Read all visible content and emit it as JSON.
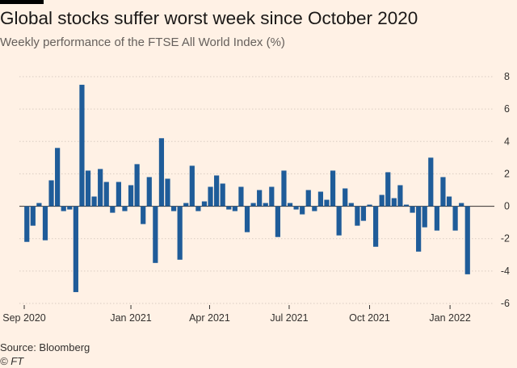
{
  "title": "Global stocks suffer worst week since October 2020",
  "subtitle": "Weekly performance of the FTSE All World Index (%)",
  "source": "Source: Bloomberg",
  "credit": "© FT",
  "chart_data": {
    "type": "bar",
    "title": "Global stocks suffer worst week since October 2020",
    "subtitle": "Weekly performance of the FTSE All World Index (%)",
    "ylabel": "",
    "xlabel": "",
    "ylim": [
      -6,
      8
    ],
    "yticks": [
      -6,
      -4,
      -2,
      0,
      2,
      4,
      6,
      8
    ],
    "y_axis_position": "right",
    "grid": "horizontal",
    "bar_color": "#1f5c99",
    "xtick_labels": [
      "Sep 2020",
      "Jan 2021",
      "Apr 2021",
      "Jul 2021",
      "Oct 2021",
      "Jan 2022"
    ],
    "xtick_dates": [
      "2020-09-01",
      "2021-01-01",
      "2021-04-01",
      "2021-07-01",
      "2021-10-01",
      "2022-01-01"
    ],
    "week_dates": [
      "2020-09-04",
      "2020-09-11",
      "2020-09-18",
      "2020-09-25",
      "2020-10-02",
      "2020-10-09",
      "2020-10-16",
      "2020-10-23",
      "2020-10-30",
      "2020-11-06",
      "2020-11-13",
      "2020-11-20",
      "2020-11-27",
      "2020-12-04",
      "2020-12-11",
      "2020-12-18",
      "2020-12-25",
      "2021-01-01",
      "2021-01-08",
      "2021-01-15",
      "2021-01-22",
      "2021-01-29",
      "2021-02-05",
      "2021-02-12",
      "2021-02-19",
      "2021-02-26",
      "2021-03-05",
      "2021-03-12",
      "2021-03-19",
      "2021-03-26",
      "2021-04-02",
      "2021-04-09",
      "2021-04-16",
      "2021-04-23",
      "2021-04-30",
      "2021-05-07",
      "2021-05-14",
      "2021-05-21",
      "2021-05-28",
      "2021-06-04",
      "2021-06-11",
      "2021-06-18",
      "2021-06-25",
      "2021-07-02",
      "2021-07-09",
      "2021-07-16",
      "2021-07-23",
      "2021-07-30",
      "2021-08-06",
      "2021-08-13",
      "2021-08-20",
      "2021-08-27",
      "2021-09-03",
      "2021-09-10",
      "2021-09-17",
      "2021-09-24",
      "2021-10-01",
      "2021-10-08",
      "2021-10-15",
      "2021-10-22",
      "2021-10-29",
      "2021-11-05",
      "2021-11-12",
      "2021-11-19",
      "2021-11-26",
      "2021-12-03",
      "2021-12-10",
      "2021-12-17",
      "2021-12-24",
      "2021-12-31",
      "2022-01-07",
      "2022-01-14",
      "2022-01-21"
    ],
    "values": [
      -2.2,
      -1.2,
      0.2,
      -2.1,
      1.6,
      3.6,
      -0.3,
      -0.2,
      -5.3,
      7.5,
      2.2,
      0.6,
      2.3,
      1.5,
      -0.4,
      1.5,
      -0.3,
      1.3,
      2.6,
      -1.1,
      1.8,
      -3.5,
      4.2,
      1.7,
      -0.3,
      -3.3,
      0.2,
      2.5,
      -0.3,
      0.3,
      1.2,
      1.9,
      1.4,
      -0.2,
      -0.3,
      1.2,
      -1.6,
      0.2,
      1.0,
      0.2,
      1.2,
      -1.9,
      2.2,
      0.2,
      -0.2,
      -0.5,
      1.0,
      -0.3,
      0.9,
      0.4,
      2.2,
      -1.8,
      1.1,
      0.2,
      -1.2,
      -0.9,
      0.1,
      -2.5,
      0.7,
      2.1,
      0.5,
      1.3,
      0.1,
      -0.4,
      -2.8,
      -1.3,
      3.0,
      -1.5,
      1.8,
      0.6,
      -1.5,
      0.2,
      -4.2
    ]
  }
}
